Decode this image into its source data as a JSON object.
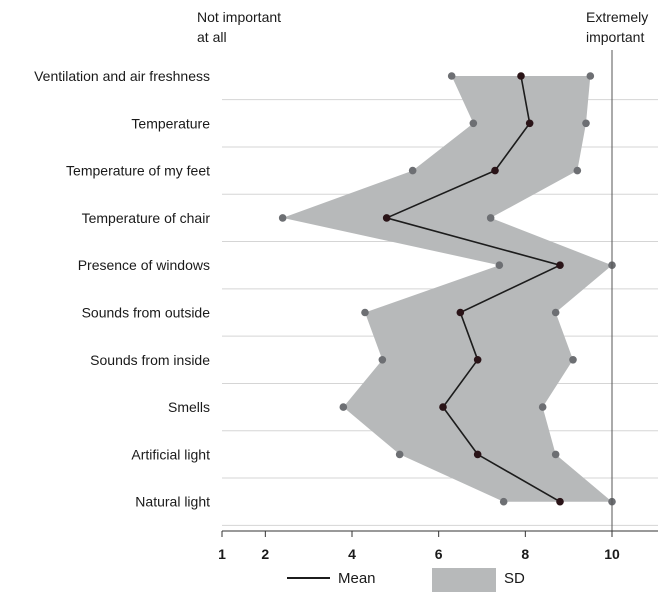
{
  "chart_data": {
    "type": "line",
    "orientation": "horizontal-value-axis",
    "end_labels": {
      "left": [
        "Not important",
        "at all"
      ],
      "right": [
        "Extremely",
        "important"
      ]
    },
    "categories": [
      "Ventilation and air freshness",
      "Temperature",
      "Temperature of my feet",
      "Temperature of chair",
      "Presence of windows",
      "Sounds from outside",
      "Sounds from inside",
      "Smells",
      "Artificial light",
      "Natural  light"
    ],
    "x_ticks": [
      "1",
      "2",
      "4",
      "6",
      "8",
      "10"
    ],
    "xlim": [
      1,
      10
    ],
    "series": [
      {
        "name": "Mean",
        "values": [
          7.9,
          8.1,
          7.3,
          4.8,
          8.8,
          6.5,
          6.9,
          6.1,
          6.9,
          8.8
        ]
      }
    ],
    "sd_band": {
      "name": "SD",
      "lower": [
        6.3,
        6.8,
        5.4,
        2.4,
        7.4,
        4.3,
        4.7,
        3.8,
        5.1,
        7.5
      ],
      "upper": [
        9.5,
        9.4,
        9.2,
        7.2,
        10.0,
        8.7,
        9.1,
        8.4,
        8.7,
        10.0
      ]
    },
    "legend": [
      {
        "label": "Mean",
        "kind": "line"
      },
      {
        "label": "SD",
        "kind": "band"
      }
    ],
    "colors": {
      "mean_line": "#1c1c1c",
      "mean_point": "#2a1418",
      "band_fill": "#b7b9ba",
      "band_point": "#6d6f73",
      "grid": "#d5d5d5",
      "axis": "#333333"
    }
  }
}
